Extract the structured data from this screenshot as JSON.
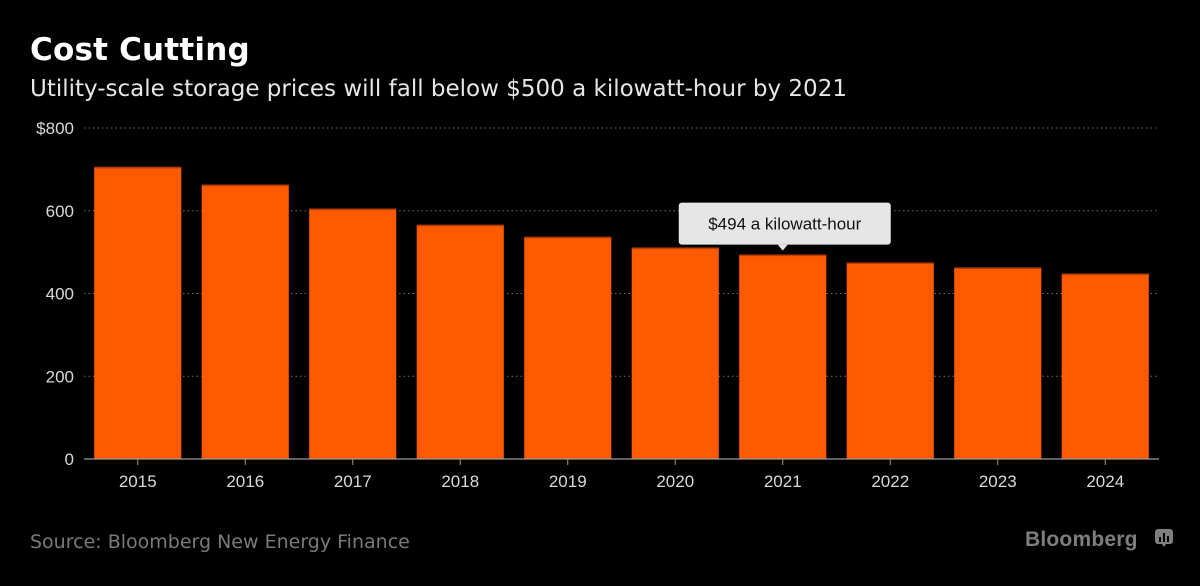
{
  "header": {
    "title": "Cost Cutting",
    "subtitle": "Utility-scale storage prices will fall below $500 a kilowatt-hour by 2021"
  },
  "footer": {
    "source": "Source: Bloomberg New Energy Finance",
    "brand": "Bloomberg",
    "brand_icon": "bloomberg-chart-bubble-icon"
  },
  "colors": {
    "background": "#000000",
    "bar": "#ff5a00",
    "bar_top": "#b83d00",
    "grid": "#6e6e6e",
    "axis": "#9a9a9a",
    "callout_bg": "#e6e6e6"
  },
  "chart_data": {
    "type": "bar",
    "title": "Cost Cutting",
    "subtitle": "Utility-scale storage prices will fall below $500 a kilowatt-hour by 2021",
    "xlabel": "",
    "ylabel": "",
    "categories": [
      "2015",
      "2016",
      "2017",
      "2018",
      "2019",
      "2020",
      "2021",
      "2022",
      "2023",
      "2024"
    ],
    "values": [
      706,
      663,
      605,
      566,
      537,
      511,
      494,
      475,
      463,
      448
    ],
    "ylim": [
      0,
      800
    ],
    "yticks": [
      0,
      200,
      400,
      600,
      800
    ],
    "ytick_labels": [
      "0",
      "200",
      "400",
      "600",
      "$800"
    ],
    "grid": true,
    "annotation": {
      "category": "2021",
      "text": "$494 a kilowatt-hour"
    }
  }
}
